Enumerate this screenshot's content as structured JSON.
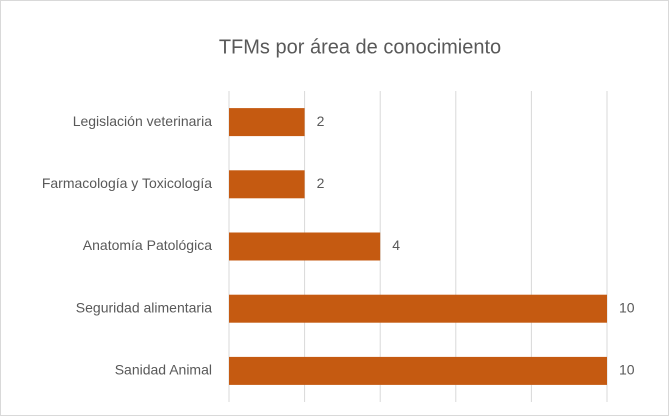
{
  "chart_data": {
    "type": "barh",
    "title": "TFMs por área de conocimiento",
    "categories": [
      "Legislación veterinaria",
      "Farmacología y Toxicología",
      "Anatomía Patológica",
      "Seguridad alimentaria",
      "Sanidad Animal"
    ],
    "values": [
      2,
      2,
      4,
      10,
      10
    ],
    "color": "#c55a11",
    "xlim": [
      0,
      10
    ],
    "xticks": [
      0,
      2,
      4,
      6,
      8,
      10
    ],
    "grid": true
  }
}
